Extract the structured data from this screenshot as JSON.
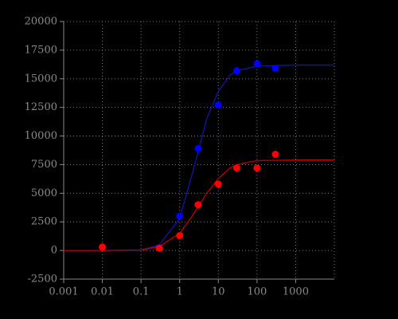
{
  "chart_data": {
    "type": "scatter",
    "xscale": "log",
    "grid": true,
    "xlim": [
      0.001,
      10000
    ],
    "xticks": [
      0.001,
      0.01,
      0.1,
      1,
      10,
      100,
      1000
    ],
    "ylim": [
      -2500,
      20000
    ],
    "yticks": [
      -2500,
      0,
      2500,
      5000,
      7500,
      10000,
      12500,
      15000,
      17500,
      20000
    ],
    "series": [
      {
        "mode": "line",
        "color": "#1414a8",
        "x": [
          0.001,
          0.01,
          0.1,
          0.3,
          1,
          2,
          3,
          5,
          10,
          20,
          30,
          100,
          1000,
          10000
        ],
        "values": [
          0,
          0,
          30,
          500,
          2800,
          6400,
          8600,
          11500,
          13900,
          15300,
          15700,
          16100,
          16200,
          16200
        ]
      },
      {
        "mode": "line",
        "color": "#c00000",
        "x": [
          0.001,
          0.01,
          0.1,
          0.3,
          1,
          2,
          3,
          5,
          10,
          20,
          30,
          100,
          1000,
          10000
        ],
        "values": [
          0,
          0,
          50,
          350,
          1500,
          2900,
          3800,
          5000,
          6300,
          7200,
          7500,
          7850,
          7900,
          7900
        ]
      },
      {
        "mode": "markers",
        "color": "#0000ff",
        "x": [
          1,
          3,
          10,
          30,
          100,
          300
        ],
        "values": [
          3000,
          8900,
          12700,
          15700,
          16300,
          15900
        ]
      },
      {
        "mode": "markers",
        "color": "#ff0000",
        "x": [
          0.01,
          0.3,
          1,
          3,
          10,
          30,
          100,
          300
        ],
        "values": [
          300,
          200,
          1300,
          4000,
          5800,
          7200,
          7200,
          8400
        ]
      }
    ]
  }
}
